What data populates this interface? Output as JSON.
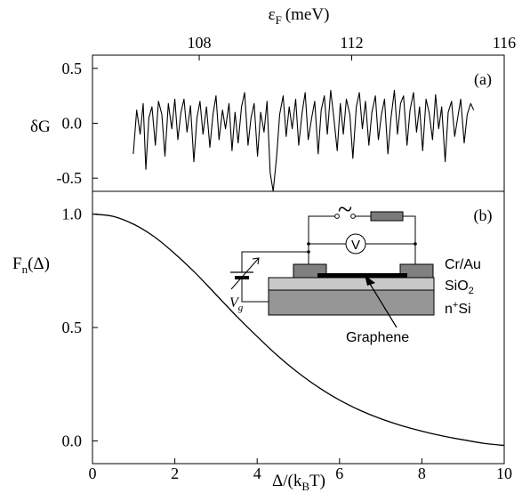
{
  "chart_data": [
    {
      "id": "a",
      "type": "line",
      "panel_label": "(a)",
      "ylabel": "δG",
      "xlabel_top_prefix": "ε",
      "xlabel_top_sub": "F",
      "xlabel_top_unit": "(meV)",
      "xlim": [
        105.2,
        116.0
      ],
      "ylim": [
        -0.62,
        0.62
      ],
      "x_ticks": [
        108,
        112,
        116
      ],
      "x_tick_labels": [
        "108",
        "112",
        "116"
      ],
      "y_ticks": [
        0.5,
        0.0,
        -0.5
      ],
      "y_tick_labels": [
        "0.5",
        "0.0",
        "-0.5"
      ],
      "series": [
        {
          "x": [
            106.27,
            106.36,
            106.45,
            106.53,
            106.6,
            106.68,
            106.76,
            106.85,
            106.93,
            107.02,
            107.1,
            107.19,
            107.28,
            107.36,
            107.44,
            107.52,
            107.6,
            107.68,
            107.77,
            107.86,
            107.94,
            108.02,
            108.1,
            108.19,
            108.28,
            108.36,
            108.44,
            108.52,
            108.61,
            108.69,
            108.78,
            108.86,
            108.94,
            109.02,
            109.11,
            109.19,
            109.28,
            109.36,
            109.44,
            109.53,
            109.61,
            109.7,
            109.78,
            109.86,
            109.94,
            110.03,
            110.11,
            110.2,
            110.28,
            110.36,
            110.44,
            110.53,
            110.61,
            110.7,
            110.78,
            110.86,
            110.95,
            111.03,
            111.12,
            111.2,
            111.28,
            111.36,
            111.45,
            111.53,
            111.62,
            111.7,
            111.78,
            111.86,
            111.95,
            112.03,
            112.12,
            112.2,
            112.28,
            112.36,
            112.45,
            112.53,
            112.62,
            112.7,
            112.78,
            112.86,
            112.95,
            113.03,
            113.12,
            113.2,
            113.28,
            113.36,
            113.45,
            113.53,
            113.62,
            113.7,
            113.78,
            113.86,
            113.95,
            114.03,
            114.12,
            114.2,
            114.28,
            114.36,
            114.45,
            114.53,
            114.62,
            114.7,
            114.78,
            114.86,
            114.95,
            115.03,
            115.12,
            115.2
          ],
          "y": [
            -0.28,
            0.12,
            -0.1,
            0.18,
            -0.42,
            0.05,
            0.15,
            -0.2,
            0.2,
            0.08,
            -0.3,
            0.18,
            -0.05,
            0.22,
            -0.15,
            0.1,
            0.22,
            -0.08,
            0.16,
            -0.35,
            0.05,
            0.2,
            -0.1,
            0.15,
            -0.22,
            0.08,
            0.25,
            -0.15,
            0.12,
            -0.05,
            0.18,
            -0.25,
            0.1,
            -0.18,
            0.15,
            0.28,
            -0.2,
            0.05,
            0.18,
            -0.3,
            0.1,
            -0.08,
            0.2,
            -0.45,
            -0.62,
            -0.3,
            0.08,
            0.25,
            -0.12,
            0.15,
            -0.05,
            0.22,
            -0.2,
            0.1,
            0.28,
            -0.15,
            0.05,
            0.2,
            -0.28,
            0.12,
            0.25,
            -0.1,
            0.3,
            0.05,
            -0.25,
            0.18,
            -0.1,
            0.22,
            0.08,
            -0.32,
            0.15,
            0.28,
            -0.05,
            0.2,
            -0.2,
            0.1,
            0.25,
            -0.15,
            0.08,
            0.22,
            -0.28,
            0.05,
            0.3,
            -0.1,
            0.18,
            0.25,
            -0.2,
            0.12,
            0.28,
            -0.08,
            0.15,
            -0.25,
            0.22,
            0.1,
            -0.15,
            0.26,
            -0.05,
            0.15,
            -0.35,
            0.1,
            0.2,
            -0.12,
            0.05,
            0.22,
            -0.18,
            0.08,
            0.18,
            0.12
          ]
        }
      ]
    },
    {
      "id": "b",
      "type": "line",
      "panel_label": "(b)",
      "ylabel_main": "F",
      "ylabel_sub": "n",
      "ylabel_tail": "(Δ)",
      "xlabel_main": "Δ/(k",
      "xlabel_sub": "B",
      "xlabel_tail": "T)",
      "xlim": [
        0,
        10
      ],
      "ylim": [
        -0.1,
        1.1
      ],
      "x_ticks": [
        0,
        2,
        4,
        6,
        8,
        10
      ],
      "x_tick_labels": [
        "0",
        "2",
        "4",
        "6",
        "8",
        "10"
      ],
      "y_ticks": [
        1.0,
        0.5,
        0.0
      ],
      "y_tick_labels": [
        "1.0",
        "0.5",
        "0.0"
      ],
      "series": [
        {
          "x": [
            0,
            0.5,
            1,
            1.5,
            2,
            2.5,
            3,
            3.5,
            4,
            4.5,
            5,
            5.5,
            6,
            6.5,
            7,
            7.5,
            8,
            8.5,
            9,
            9.5,
            10
          ],
          "y": [
            1.0,
            0.99,
            0.955,
            0.9,
            0.825,
            0.74,
            0.645,
            0.55,
            0.46,
            0.375,
            0.3,
            0.235,
            0.18,
            0.135,
            0.098,
            0.068,
            0.043,
            0.022,
            0.005,
            -0.01,
            -0.02
          ]
        }
      ]
    }
  ],
  "inset": {
    "contact_label": "Cr/Au",
    "oxide_label_main": "SiO",
    "oxide_label_sub": "2",
    "substrate_label_sup": "n",
    "substrate_label_plus": "+",
    "substrate_label_tail": "Si",
    "graphene_label": "Graphene",
    "voltmeter_label": "V",
    "ac_symbol": "~",
    "gate_label_main": "V",
    "gate_label_sub": "g",
    "color_contact": "#808080",
    "color_oxide": "#c8c8c8",
    "color_substrate": "#969696",
    "color_graphene": "#000000",
    "color_resistor": "#7a7a7a"
  }
}
